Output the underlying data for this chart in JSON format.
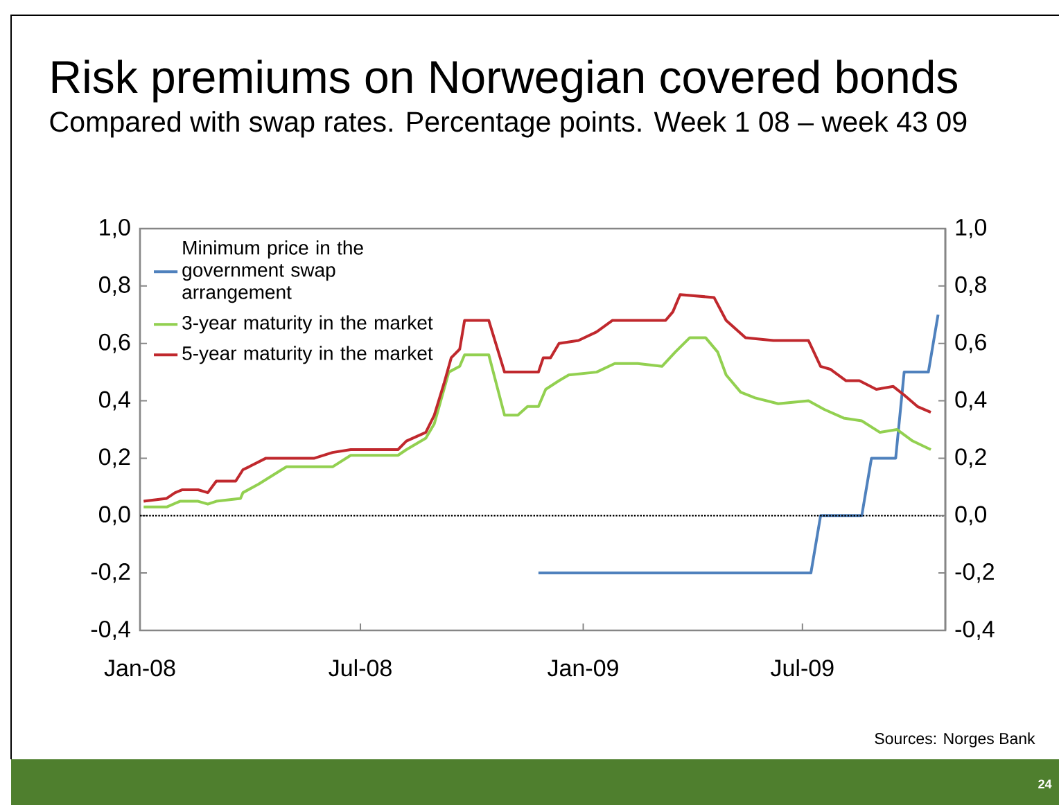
{
  "chart_data": {
    "type": "line",
    "title": "Risk premiums on Norwegian covered bonds",
    "subtitle": "Compared with swap rates. Percentage points. Week 1 08 – week 43 09",
    "xlim": [
      "2008-01-01",
      "2009-10-27"
    ],
    "xticks": [
      {
        "value": "2008-01-01",
        "label": "Jan-08"
      },
      {
        "value": "2008-07-01",
        "label": "Jul-08"
      },
      {
        "value": "2009-01-01",
        "label": "Jan-09"
      },
      {
        "value": "2009-07-01",
        "label": "Jul-09"
      }
    ],
    "ylim": [
      -0.4,
      1.0
    ],
    "yticks": [
      {
        "value": -0.4,
        "label": "-0,4"
      },
      {
        "value": -0.2,
        "label": "-0,2"
      },
      {
        "value": 0.0,
        "label": "0,0"
      },
      {
        "value": 0.2,
        "label": "0,2"
      },
      {
        "value": 0.4,
        "label": "0,4"
      },
      {
        "value": 0.6,
        "label": "0,6"
      },
      {
        "value": 0.8,
        "label": "0,8"
      },
      {
        "value": 1.0,
        "label": "1,0"
      }
    ],
    "y2lim": [
      -0.4,
      1.0
    ],
    "y2ticks": [
      {
        "value": -0.4,
        "label": "-0,4"
      },
      {
        "value": -0.2,
        "label": "-0,2"
      },
      {
        "value": 0.0,
        "label": "0,0"
      },
      {
        "value": 0.2,
        "label": "0,2"
      },
      {
        "value": 0.4,
        "label": "0,4"
      },
      {
        "value": 0.6,
        "label": "0,6"
      },
      {
        "value": 0.8,
        "label": "0,8"
      },
      {
        "value": 1.0,
        "label": "1,0"
      }
    ],
    "series": [
      {
        "name": "Minimum price in the government swap arrangement",
        "color": "#4f81bd",
        "x": [
          "2008-11-25",
          "2009-07-08",
          "2009-07-16",
          "2009-08-19",
          "2009-08-27",
          "2009-09-16",
          "2009-09-23",
          "2009-10-13",
          "2009-10-21"
        ],
        "values": [
          -0.2,
          -0.2,
          0.0,
          0.0,
          0.2,
          0.2,
          0.5,
          0.5,
          0.7
        ]
      },
      {
        "name": "3-year maturity in the market",
        "color": "#92d050",
        "x": [
          "2008-01-04",
          "2008-01-23",
          "2008-02-03",
          "2008-02-18",
          "2008-02-26",
          "2008-03-04",
          "2008-03-24",
          "2008-03-26",
          "2008-04-08",
          "2008-04-27",
          "2008-05-01",
          "2008-06-08",
          "2008-06-23",
          "2008-08-01",
          "2008-08-08",
          "2008-08-24",
          "2008-08-31",
          "2008-09-12",
          "2008-09-21",
          "2008-09-25",
          "2008-10-15",
          "2008-10-28",
          "2008-11-08",
          "2008-11-16",
          "2008-11-25",
          "2008-12-01",
          "2008-12-12",
          "2008-12-20",
          "2009-01-12",
          "2009-01-27",
          "2009-02-15",
          "2009-03-07",
          "2009-03-18",
          "2009-03-30",
          "2009-04-12",
          "2009-04-22",
          "2009-04-29",
          "2009-05-11",
          "2009-05-23",
          "2009-06-11",
          "2009-07-06",
          "2009-07-19",
          "2009-08-04",
          "2009-08-19",
          "2009-09-03",
          "2009-09-17",
          "2009-09-30",
          "2009-10-15"
        ],
        "values": [
          0.03,
          0.03,
          0.05,
          0.05,
          0.04,
          0.05,
          0.06,
          0.08,
          0.11,
          0.16,
          0.17,
          0.17,
          0.21,
          0.21,
          0.23,
          0.27,
          0.32,
          0.5,
          0.52,
          0.56,
          0.56,
          0.35,
          0.35,
          0.38,
          0.38,
          0.44,
          0.47,
          0.49,
          0.5,
          0.53,
          0.53,
          0.52,
          0.57,
          0.62,
          0.62,
          0.57,
          0.49,
          0.43,
          0.41,
          0.39,
          0.4,
          0.37,
          0.34,
          0.33,
          0.29,
          0.3,
          0.26,
          0.23
        ]
      },
      {
        "name": "5-year maturity in the market",
        "color": "#c0282d",
        "x": [
          "2008-01-04",
          "2008-01-23",
          "2008-01-30",
          "2008-02-05",
          "2008-02-18",
          "2008-02-26",
          "2008-03-04",
          "2008-03-20",
          "2008-03-26",
          "2008-03-31",
          "2008-04-14",
          "2008-05-24",
          "2008-06-08",
          "2008-06-23",
          "2008-08-01",
          "2008-08-08",
          "2008-08-24",
          "2008-08-31",
          "2008-09-08",
          "2008-09-14",
          "2008-09-21",
          "2008-09-25",
          "2008-10-15",
          "2008-10-28",
          "2008-11-25",
          "2008-11-29",
          "2008-12-05",
          "2008-12-12",
          "2008-12-28",
          "2009-01-12",
          "2009-01-25",
          "2009-03-10",
          "2009-03-16",
          "2009-03-22",
          "2009-04-19",
          "2009-04-29",
          "2009-05-15",
          "2009-06-07",
          "2009-07-06",
          "2009-07-16",
          "2009-07-24",
          "2009-08-06",
          "2009-08-17",
          "2009-08-31",
          "2009-09-14",
          "2009-09-23",
          "2009-10-04",
          "2009-10-15"
        ],
        "values": [
          0.05,
          0.06,
          0.08,
          0.09,
          0.09,
          0.08,
          0.12,
          0.12,
          0.16,
          0.17,
          0.2,
          0.2,
          0.22,
          0.23,
          0.23,
          0.26,
          0.29,
          0.35,
          0.46,
          0.55,
          0.58,
          0.68,
          0.68,
          0.5,
          0.5,
          0.55,
          0.55,
          0.6,
          0.61,
          0.64,
          0.68,
          0.68,
          0.71,
          0.77,
          0.76,
          0.68,
          0.62,
          0.61,
          0.61,
          0.52,
          0.51,
          0.47,
          0.47,
          0.44,
          0.45,
          0.42,
          0.38,
          0.36
        ]
      }
    ],
    "ref_lines": [
      {
        "axis": "y",
        "value": 0,
        "color": "#000000",
        "line_style": "dotted"
      }
    ],
    "legend": "top left",
    "annotations": [
      "Sources: Norges Bank",
      "24"
    ]
  }
}
